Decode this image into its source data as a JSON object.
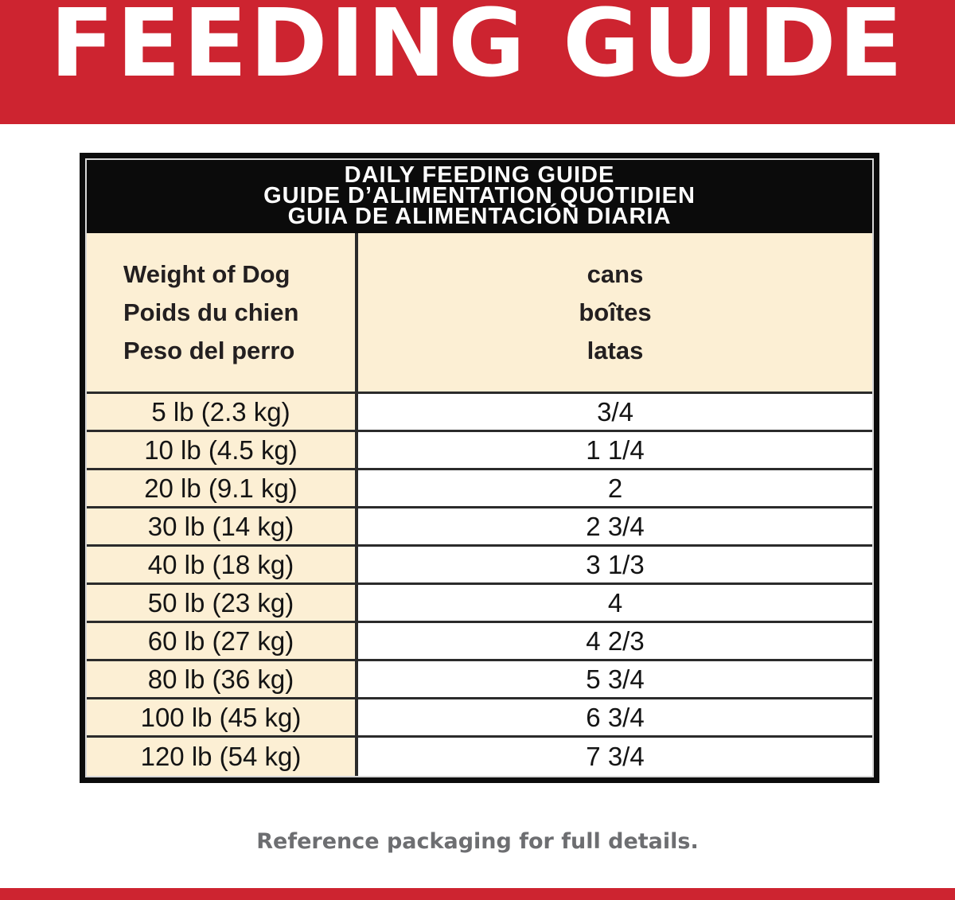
{
  "banner": {
    "title": "FEEDING GUIDE",
    "bg_color": "#cd2430",
    "text_color": "#ffffff"
  },
  "table": {
    "title_lines": [
      "DAILY FEEDING GUIDE",
      "GUIDE D’ALIMENTATION QUOTIDIEN",
      "GUIA DE ALIMENTACIÓN DIARIA"
    ],
    "column_headers": {
      "weight": [
        "Weight of Dog",
        "Poids du chien",
        "Peso del perro"
      ],
      "cans": [
        "cans",
        "boîtes",
        "latas"
      ]
    },
    "rows": [
      {
        "weight": "5 lb (2.3 kg)",
        "cans": "3/4"
      },
      {
        "weight": "10 lb (4.5 kg)",
        "cans": "1 1/4"
      },
      {
        "weight": "20 lb (9.1 kg)",
        "cans": "2"
      },
      {
        "weight": "30 lb (14 kg)",
        "cans": "2 3/4"
      },
      {
        "weight": "40 lb (18 kg)",
        "cans": "3 1/3"
      },
      {
        "weight": "50 lb (23 kg)",
        "cans": "4"
      },
      {
        "weight": "60 lb (27 kg)",
        "cans": "4 2/3"
      },
      {
        "weight": "80 lb (36 kg)",
        "cans": "5 3/4"
      },
      {
        "weight": "100 lb (45 kg)",
        "cans": "6 3/4"
      },
      {
        "weight": "120 lb (54 kg)",
        "cans": "7 3/4"
      }
    ],
    "colors": {
      "header_bg": "#0b0b0b",
      "cream_cell": "#fcefd4",
      "grid_line": "#2b2b2b"
    }
  },
  "footer": {
    "note": "Reference packaging for full details.",
    "text_color": "#6d6e71"
  }
}
